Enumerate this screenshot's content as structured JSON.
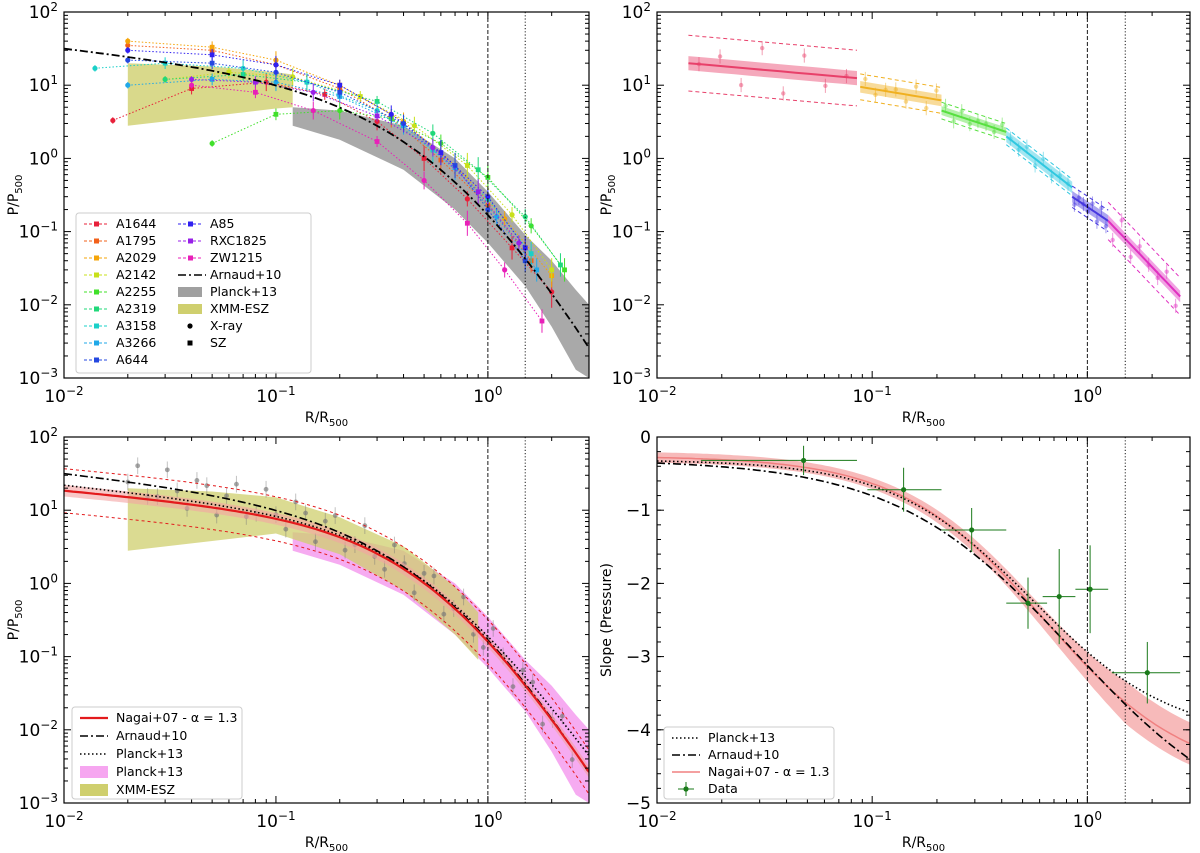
{
  "figure": {
    "colors": {
      "frame": "#000000",
      "nagai": "#e31a1c",
      "nagai_band": "#f4a3a3",
      "planck_grey": "#a0a0a0",
      "planck_magenta": "#f6a6f0",
      "xmm_olive": "#cfcf6e",
      "grey_points": "#777777",
      "data_green": "#1a7a1a"
    }
  },
  "chart_data": [
    {
      "id": "panel-a",
      "type": "line",
      "xscale": "log",
      "yscale": "log",
      "xlim": [
        0.01,
        3.0
      ],
      "ylim": [
        0.001,
        100
      ],
      "xlabel": "R/R500",
      "ylabel": "P/P500",
      "xlabel_parts": {
        "main": "R/R",
        "sub": "500"
      },
      "ylabel_parts": {
        "main": "P/P",
        "sub": "500"
      },
      "xticks": [
        {
          "v": 0.01,
          "b": "10",
          "e": "−2"
        },
        {
          "v": 0.1,
          "b": "10",
          "e": "−1"
        },
        {
          "v": 1,
          "b": "10",
          "e": "0"
        }
      ],
      "yticks": [
        {
          "v": 0.001,
          "b": "10",
          "e": "−3"
        },
        {
          "v": 0.01,
          "b": "10",
          "e": "−2"
        },
        {
          "v": 0.1,
          "b": "10",
          "e": "−1"
        },
        {
          "v": 1,
          "b": "10",
          "e": "0"
        },
        {
          "v": 10,
          "b": "10",
          "e": "1"
        },
        {
          "v": 100,
          "b": "10",
          "e": "2"
        }
      ],
      "vlines": [
        {
          "x": 1.0,
          "style": "dashed"
        },
        {
          "x": 1.5,
          "style": "dotted"
        }
      ],
      "series": [
        {
          "name": "A1644",
          "color": "#e8203a",
          "x": [
            0.017,
            0.04,
            0.09,
            0.17,
            0.3,
            0.5,
            0.8,
            1.3,
            2.0
          ],
          "y": [
            3.3,
            9.0,
            11.0,
            7.5,
            3.2,
            1.0,
            0.28,
            0.06,
            0.015
          ]
        },
        {
          "name": "A1795",
          "color": "#f2601a",
          "x": [
            0.02,
            0.05,
            0.1,
            0.2,
            0.35,
            0.6,
            1.0,
            1.6
          ],
          "y": [
            35,
            30,
            19,
            9.0,
            3.5,
            0.95,
            0.23,
            0.04
          ]
        },
        {
          "name": "A2029",
          "color": "#f5a50a",
          "x": [
            0.02,
            0.05,
            0.1,
            0.2,
            0.4,
            0.7,
            1.2,
            2.0
          ],
          "y": [
            40,
            33,
            22,
            10,
            3.2,
            0.8,
            0.15,
            0.025
          ]
        },
        {
          "name": "A2142",
          "color": "#c8e01a",
          "x": [
            0.03,
            0.06,
            0.12,
            0.25,
            0.45,
            0.8,
            1.3,
            2.0
          ],
          "y": [
            12,
            15,
            13,
            7.0,
            2.8,
            0.8,
            0.17,
            0.03
          ]
        },
        {
          "name": "A2255",
          "color": "#40e02a",
          "x": [
            0.05,
            0.1,
            0.2,
            0.35,
            0.6,
            1.0,
            1.6,
            2.3
          ],
          "y": [
            1.6,
            4.0,
            4.5,
            3.5,
            1.6,
            0.55,
            0.12,
            0.03
          ]
        },
        {
          "name": "A2319",
          "color": "#20d87a",
          "x": [
            0.03,
            0.07,
            0.14,
            0.3,
            0.55,
            0.9,
            1.5,
            2.2
          ],
          "y": [
            12,
            14,
            11,
            6.0,
            2.2,
            0.7,
            0.16,
            0.035
          ]
        },
        {
          "name": "A3158",
          "color": "#1ad0c8",
          "x": [
            0.014,
            0.03,
            0.07,
            0.14,
            0.3,
            0.55,
            1.0,
            1.6
          ],
          "y": [
            17,
            20,
            17,
            11,
            4.5,
            1.3,
            0.28,
            0.05
          ]
        },
        {
          "name": "A3266",
          "color": "#20a8e8",
          "x": [
            0.02,
            0.05,
            0.1,
            0.2,
            0.4,
            0.7,
            1.1,
            1.7
          ],
          "y": [
            10,
            12,
            11,
            7.0,
            2.8,
            0.75,
            0.16,
            0.03
          ]
        },
        {
          "name": "A644",
          "color": "#2448e0",
          "x": [
            0.02,
            0.05,
            0.1,
            0.2,
            0.4,
            0.7,
            1.0,
            1.5
          ],
          "y": [
            22,
            20,
            15,
            8.0,
            3.0,
            0.8,
            0.2,
            0.04
          ]
        },
        {
          "name": "A85",
          "color": "#3020f0",
          "x": [
            0.02,
            0.05,
            0.1,
            0.2,
            0.35,
            0.6,
            1.0,
            1.5
          ],
          "y": [
            30,
            26,
            19,
            10,
            4.0,
            1.2,
            0.3,
            0.06
          ]
        },
        {
          "name": "RXC1825",
          "color": "#9820e8",
          "x": [
            0.04,
            0.08,
            0.15,
            0.3,
            0.55,
            0.9,
            1.4
          ],
          "y": [
            12,
            11,
            8.0,
            3.8,
            1.4,
            0.35,
            0.07
          ]
        },
        {
          "name": "ZW1215",
          "color": "#e820b8",
          "x": [
            0.04,
            0.08,
            0.15,
            0.3,
            0.5,
            0.8,
            1.2,
            1.8
          ],
          "y": [
            10,
            8.0,
            4.5,
            1.7,
            0.5,
            0.13,
            0.03,
            0.006
          ]
        }
      ],
      "models": [
        {
          "name": "Arnaud+10",
          "style": "dashdot",
          "color": "#000000"
        }
      ],
      "bands": [
        {
          "name": "Planck+13",
          "color": "#a0a0a0",
          "x": [
            0.12,
            0.2,
            0.4,
            0.7,
            1.0,
            1.5,
            2.0,
            2.6,
            3.0
          ],
          "lo": [
            2.8,
            1.8,
            0.7,
            0.2,
            0.07,
            0.018,
            0.005,
            0.0013,
            0.001
          ],
          "hi": [
            5.0,
            4.5,
            2.8,
            1.0,
            0.35,
            0.09,
            0.04,
            0.016,
            0.01
          ]
        },
        {
          "name": "XMM-ESZ",
          "color": "#cfcf6e",
          "x": [
            0.02,
            0.05,
            0.1,
            0.12
          ],
          "lo": [
            2.8,
            3.8,
            4.8,
            5.0
          ],
          "hi": [
            20,
            18,
            15,
            14
          ]
        }
      ],
      "legend": {
        "placement": "lower-left",
        "markers": [
          {
            "name": "X-ray",
            "shape": "circle"
          },
          {
            "name": "SZ",
            "shape": "square"
          }
        ]
      }
    },
    {
      "id": "panel-b",
      "type": "line",
      "xscale": "log",
      "yscale": "log",
      "xlim": [
        0.01,
        3.0
      ],
      "ylim": [
        0.001,
        100
      ],
      "xlabel": "R/R500",
      "ylabel": "P/P500",
      "xlabel_parts": {
        "main": "R/R",
        "sub": "500"
      },
      "ylabel_parts": {
        "main": "P/P",
        "sub": "500"
      },
      "xticks": [
        {
          "v": 0.01,
          "b": "10",
          "e": "−2"
        },
        {
          "v": 0.1,
          "b": "10",
          "e": "−1"
        },
        {
          "v": 1,
          "b": "10",
          "e": "0"
        }
      ],
      "yticks": [
        {
          "v": 0.001,
          "b": "10",
          "e": "−3"
        },
        {
          "v": 0.01,
          "b": "10",
          "e": "−2"
        },
        {
          "v": 0.1,
          "b": "10",
          "e": "−1"
        },
        {
          "v": 1,
          "b": "10",
          "e": "0"
        },
        {
          "v": 10,
          "b": "10",
          "e": "1"
        },
        {
          "v": 100,
          "b": "10",
          "e": "2"
        }
      ],
      "vlines": [
        {
          "x": 1.0,
          "style": "dashed"
        },
        {
          "x": 1.5,
          "style": "dotted"
        }
      ],
      "segments": [
        {
          "color": "#e8406a",
          "x": [
            0.014,
            0.085
          ],
          "y": [
            20,
            12.5
          ],
          "band": 1.25,
          "disp": 2.4
        },
        {
          "color": "#f0b020",
          "x": [
            0.088,
            0.21
          ],
          "y": [
            9.5,
            6.2
          ],
          "band": 1.2,
          "disp": 1.5
        },
        {
          "color": "#58e040",
          "x": [
            0.21,
            0.42
          ],
          "y": [
            4.5,
            2.3
          ],
          "band": 1.15,
          "disp": 1.3
        },
        {
          "color": "#30c8e0",
          "x": [
            0.42,
            0.85
          ],
          "y": [
            2.0,
            0.4
          ],
          "band": 1.2,
          "disp": 1.3
        },
        {
          "color": "#4838e0",
          "x": [
            0.85,
            1.25
          ],
          "y": [
            0.3,
            0.14
          ],
          "band": 1.2,
          "disp": 1.4
        },
        {
          "color": "#e030c0",
          "x": [
            1.25,
            2.7
          ],
          "y": [
            0.14,
            0.013
          ],
          "band": 1.2,
          "disp": 1.8
        }
      ]
    },
    {
      "id": "panel-c",
      "type": "line",
      "xscale": "log",
      "yscale": "log",
      "xlim": [
        0.01,
        3.0
      ],
      "ylim": [
        0.001,
        100
      ],
      "xlabel": "R/R500",
      "ylabel": "P/P500",
      "xlabel_parts": {
        "main": "R/R",
        "sub": "500"
      },
      "ylabel_parts": {
        "main": "P/P",
        "sub": "500"
      },
      "xticks": [
        {
          "v": 0.01,
          "b": "10",
          "e": "−2"
        },
        {
          "v": 0.1,
          "b": "10",
          "e": "−1"
        },
        {
          "v": 1,
          "b": "10",
          "e": "0"
        }
      ],
      "yticks": [
        {
          "v": 0.001,
          "b": "10",
          "e": "−3"
        },
        {
          "v": 0.01,
          "b": "10",
          "e": "−2"
        },
        {
          "v": 0.1,
          "b": "10",
          "e": "−1"
        },
        {
          "v": 1,
          "b": "10",
          "e": "0"
        },
        {
          "v": 10,
          "b": "10",
          "e": "1"
        },
        {
          "v": 100,
          "b": "10",
          "e": "2"
        }
      ],
      "vlines": [
        {
          "x": 1.0,
          "style": "dashed"
        },
        {
          "x": 1.5,
          "style": "dotted"
        }
      ],
      "models": [
        {
          "name": "Nagai+07 - α = 1.3",
          "style": "solid",
          "color": "#e31a1c"
        },
        {
          "name": "Arnaud+10",
          "style": "dashdot",
          "color": "#000000"
        },
        {
          "name": "Planck+13",
          "style": "dotted",
          "color": "#000000"
        }
      ],
      "bands": [
        {
          "name": "Planck+13",
          "color": "#f6a6f0",
          "x": [
            0.12,
            0.2,
            0.4,
            0.7,
            1.0,
            1.5,
            2.0,
            2.6,
            3.0
          ],
          "lo": [
            2.8,
            1.8,
            0.7,
            0.2,
            0.07,
            0.018,
            0.005,
            0.0013,
            0.001
          ],
          "hi": [
            5.0,
            4.5,
            2.8,
            1.0,
            0.35,
            0.09,
            0.04,
            0.016,
            0.01
          ]
        },
        {
          "name": "XMM-ESZ",
          "color": "#cfcf6e",
          "x": [
            0.02,
            0.05,
            0.1,
            0.2,
            0.4,
            0.7,
            0.9
          ],
          "lo": [
            2.8,
            3.8,
            4.8,
            2.5,
            0.8,
            0.2,
            0.09
          ],
          "hi": [
            20,
            18,
            15,
            8.0,
            3.2,
            0.9,
            0.4
          ]
        }
      ],
      "legend": {
        "placement": "lower-left"
      }
    },
    {
      "id": "panel-d",
      "type": "line",
      "xscale": "log",
      "yscale": "linear",
      "xlim": [
        0.01,
        3.0
      ],
      "ylim": [
        -5,
        0
      ],
      "xlabel": "R/R500",
      "ylabel": "Slope (Pressure)",
      "xlabel_parts": {
        "main": "R/R",
        "sub": "500"
      },
      "xticks": [
        {
          "v": 0.01,
          "b": "10",
          "e": "−2"
        },
        {
          "v": 0.1,
          "b": "10",
          "e": "−1"
        },
        {
          "v": 1,
          "b": "10",
          "e": "0"
        }
      ],
      "yticks": [
        {
          "v": 0,
          "t": "0"
        },
        {
          "v": -1,
          "t": "−1"
        },
        {
          "v": -2,
          "t": "−2"
        },
        {
          "v": -3,
          "t": "−3"
        },
        {
          "v": -4,
          "t": "−4"
        },
        {
          "v": -5,
          "t": "−5"
        }
      ],
      "vlines": [
        {
          "x": 1.0,
          "style": "dashed"
        },
        {
          "x": 1.5,
          "style": "dotted"
        }
      ],
      "models": [
        {
          "name": "Planck+13",
          "style": "dotted",
          "color": "#000000"
        },
        {
          "name": "Arnaud+10",
          "style": "dashdot",
          "color": "#000000"
        },
        {
          "name": "Nagai+07 - α = 1.3",
          "style": "solid",
          "color": "#f08080"
        }
      ],
      "data_points": {
        "name": "Data",
        "color": "#1a7a1a",
        "points": [
          {
            "x": 0.048,
            "y": -0.32,
            "xlo": 0.016,
            "xhi": 0.085,
            "yerr": 0.2
          },
          {
            "x": 0.14,
            "y": -0.72,
            "xlo": 0.095,
            "xhi": 0.21,
            "yerr": 0.3
          },
          {
            "x": 0.29,
            "y": -1.27,
            "xlo": 0.21,
            "xhi": 0.42,
            "yerr": 0.3
          },
          {
            "x": 0.53,
            "y": -2.27,
            "xlo": 0.42,
            "xhi": 0.65,
            "yerr": 0.35
          },
          {
            "x": 0.74,
            "y": -2.18,
            "xlo": 0.62,
            "xhi": 0.88,
            "yerr": 0.65
          },
          {
            "x": 1.03,
            "y": -2.08,
            "xlo": 0.88,
            "xhi": 1.25,
            "yerr": 0.6
          },
          {
            "x": 1.9,
            "y": -3.22,
            "xlo": 1.3,
            "xhi": 2.7,
            "yerr": 0.42
          }
        ]
      },
      "legend": {
        "placement": "lower-left"
      }
    }
  ]
}
